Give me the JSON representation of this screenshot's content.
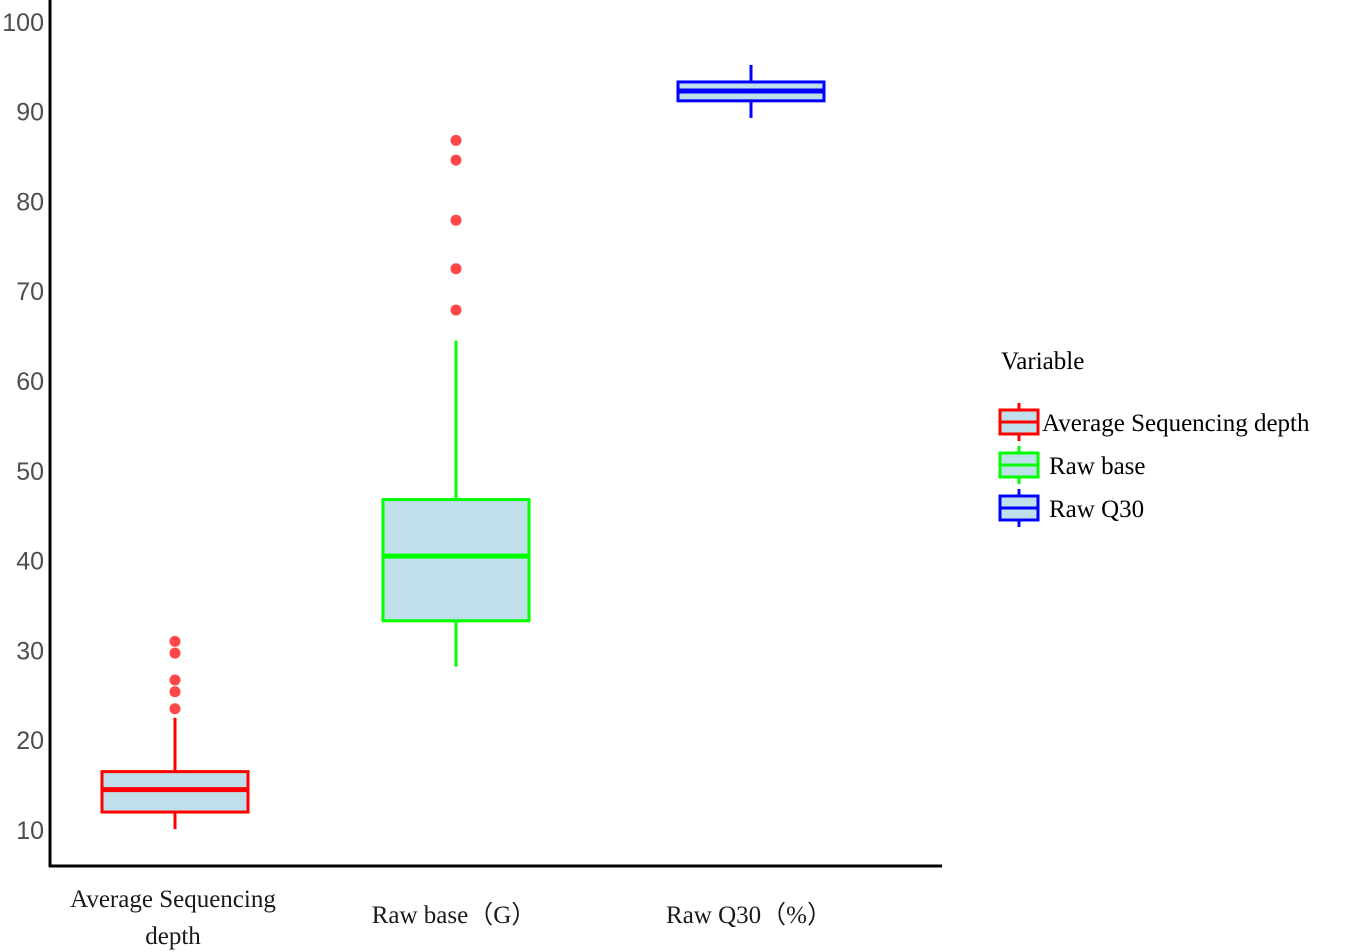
{
  "chart_data": {
    "type": "boxplot",
    "title": "",
    "xlabel": "",
    "ylabel": "",
    "ylim": [
      5,
      102
    ],
    "yticks": [
      10,
      20,
      30,
      40,
      50,
      60,
      70,
      80,
      90,
      100
    ],
    "grid": false,
    "legend_position": "right",
    "legend_title": "Variable",
    "categories": [
      "Average Sequencing depth",
      "Raw base（G）",
      "Raw Q30（%）"
    ],
    "category_label_lines": [
      [
        "Average Sequencing",
        "depth"
      ],
      [
        "Raw base（G）"
      ],
      [
        "Raw Q30（%）"
      ]
    ],
    "series": [
      {
        "name": "Average Sequencing depth",
        "color": "#ff0000",
        "fill": "#bfe0ea",
        "whisker_low": 10.1,
        "q1": 12.0,
        "median": 14.5,
        "q3": 16.5,
        "whisker_high": 22.5,
        "outliers": [
          23.5,
          25.4,
          26.7,
          29.7,
          31.0
        ]
      },
      {
        "name": "Raw base",
        "color": "#00ff00",
        "fill": "#bfe0ea",
        "whisker_low": 28.2,
        "q1": 33.3,
        "median": 40.5,
        "q3": 46.8,
        "whisker_high": 64.5,
        "outliers": [
          67.9,
          72.5,
          77.9,
          84.6,
          86.8
        ]
      },
      {
        "name": "Raw Q30",
        "color": "#0000ff",
        "fill": "#bfe0ea",
        "whisker_low": 89.3,
        "q1": 91.2,
        "median": 92.3,
        "q3": 93.3,
        "whisker_high": 95.2,
        "outliers": []
      }
    ],
    "outlier_color": "#ff3333"
  },
  "legend": {
    "title": "Variable",
    "items": [
      {
        "label": "Average Sequencing depth",
        "color": "#ff0000"
      },
      {
        "label": "Raw base",
        "color": "#00ff00"
      },
      {
        "label": "Raw Q30",
        "color": "#0000ff"
      }
    ]
  }
}
